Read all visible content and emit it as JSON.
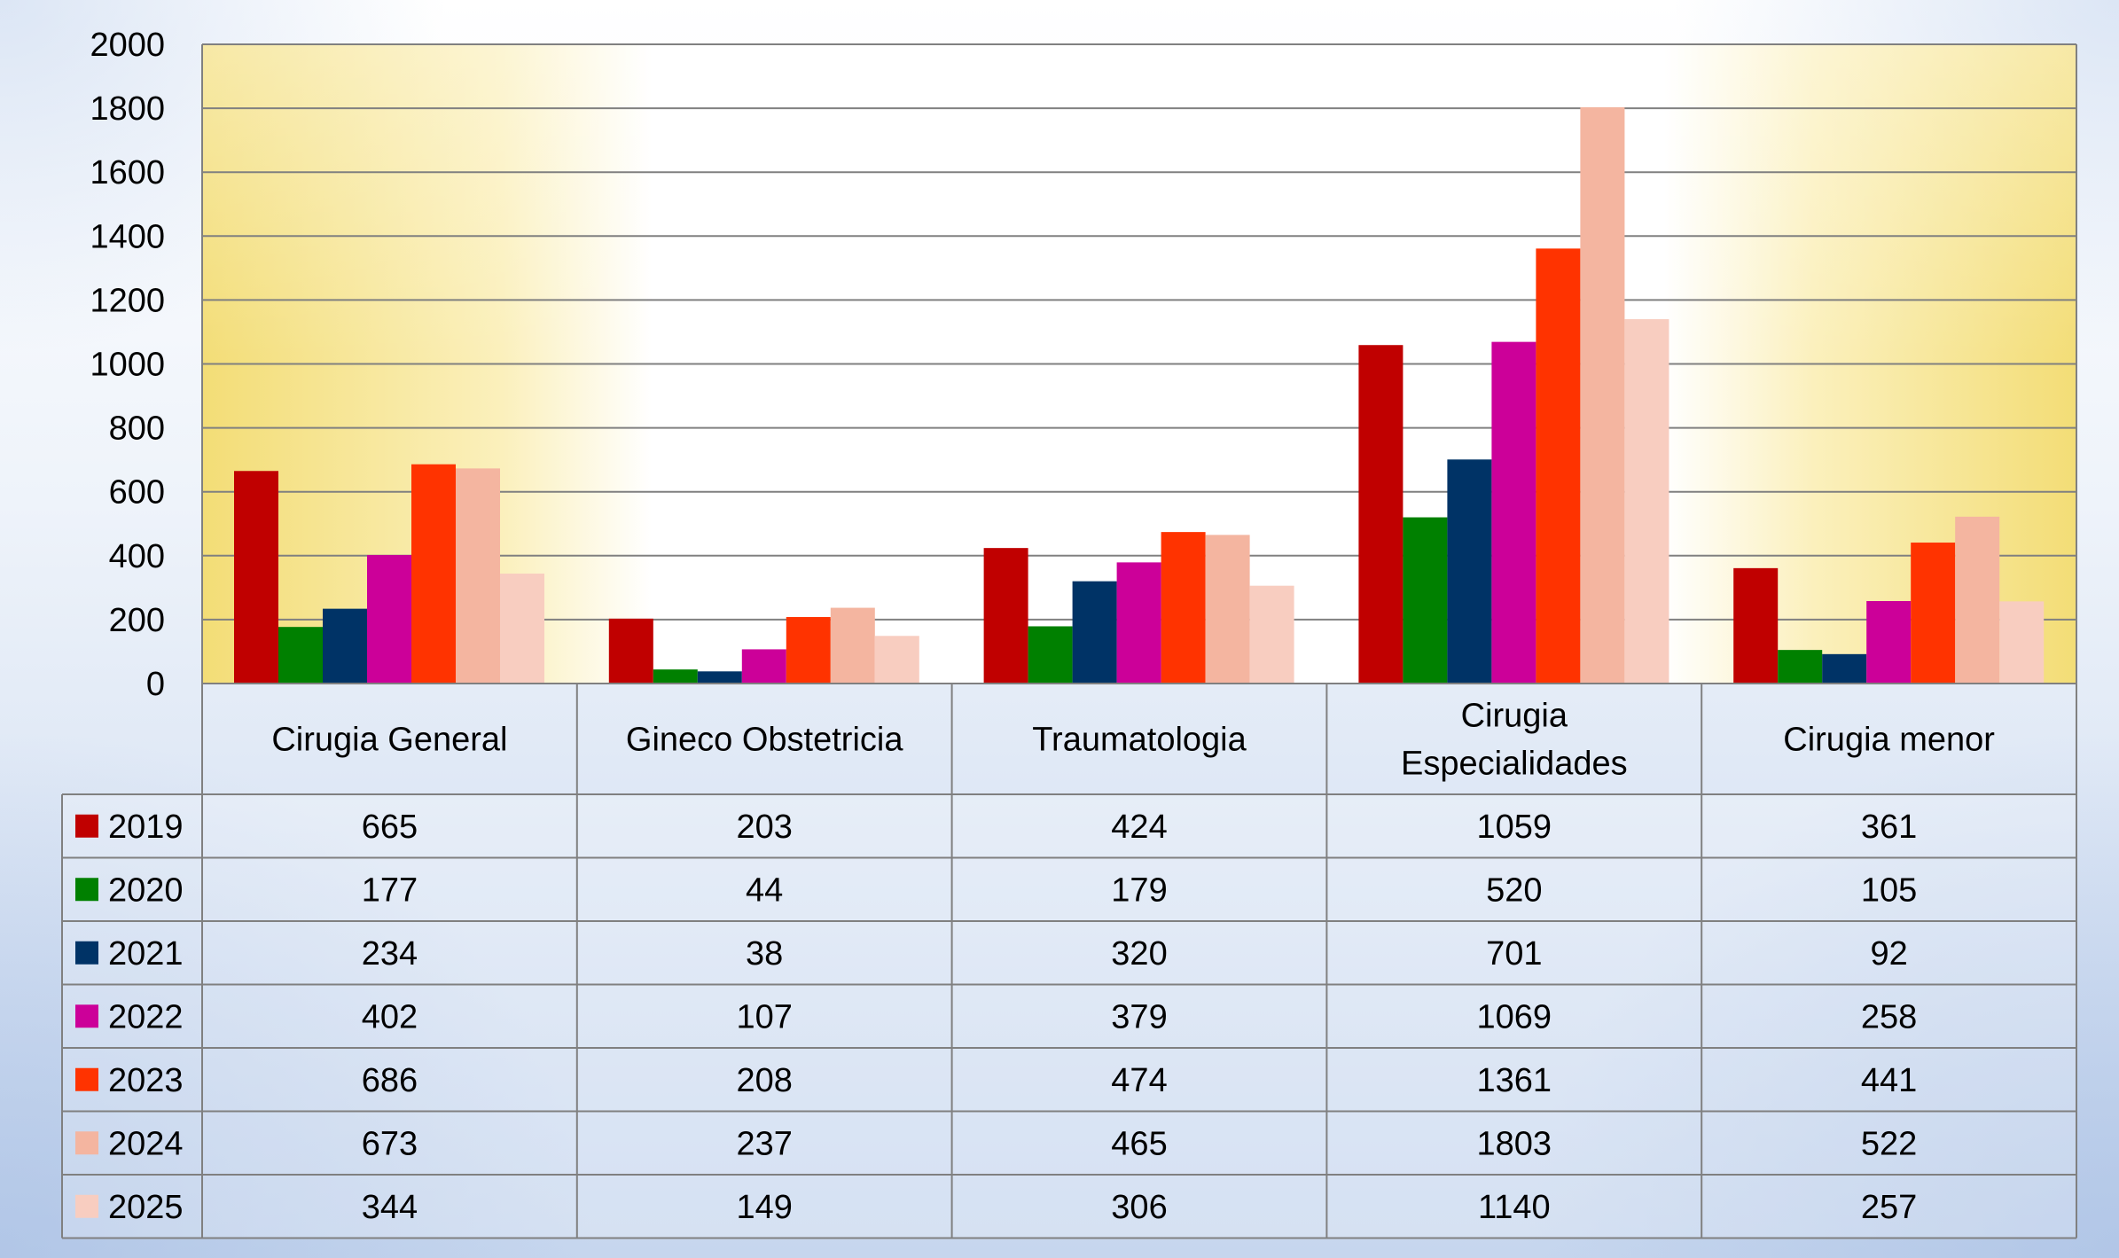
{
  "chart_data": {
    "type": "bar",
    "title": "",
    "xlabel": "",
    "ylabel": "",
    "ylim": [
      0,
      2000
    ],
    "yticks": [
      0,
      200,
      400,
      600,
      800,
      1000,
      1200,
      1400,
      1600,
      1800,
      2000
    ],
    "grid": true,
    "legend": "data-table-left",
    "categories": [
      [
        "Cirugia General"
      ],
      [
        "Gineco Obstetricia"
      ],
      [
        "Traumatologia"
      ],
      [
        "Cirugia",
        "Especialidades"
      ],
      [
        "Cirugia menor"
      ]
    ],
    "series": [
      {
        "name": "2019",
        "color": "#C00000",
        "values": [
          665,
          203,
          424,
          1059,
          361
        ]
      },
      {
        "name": "2020",
        "color": "#008000",
        "values": [
          177,
          44,
          179,
          520,
          105
        ]
      },
      {
        "name": "2021",
        "color": "#003366",
        "values": [
          234,
          38,
          320,
          701,
          92
        ]
      },
      {
        "name": "2022",
        "color": "#CC0099",
        "values": [
          402,
          107,
          379,
          1069,
          258
        ]
      },
      {
        "name": "2023",
        "color": "#FF3300",
        "values": [
          686,
          208,
          474,
          1361,
          441
        ]
      },
      {
        "name": "2024",
        "color": "#F4B5A0",
        "values": [
          673,
          237,
          465,
          1803,
          522
        ]
      },
      {
        "name": "2025",
        "color": "#F8CDC0",
        "values": [
          344,
          149,
          306,
          1140,
          257
        ]
      }
    ]
  }
}
